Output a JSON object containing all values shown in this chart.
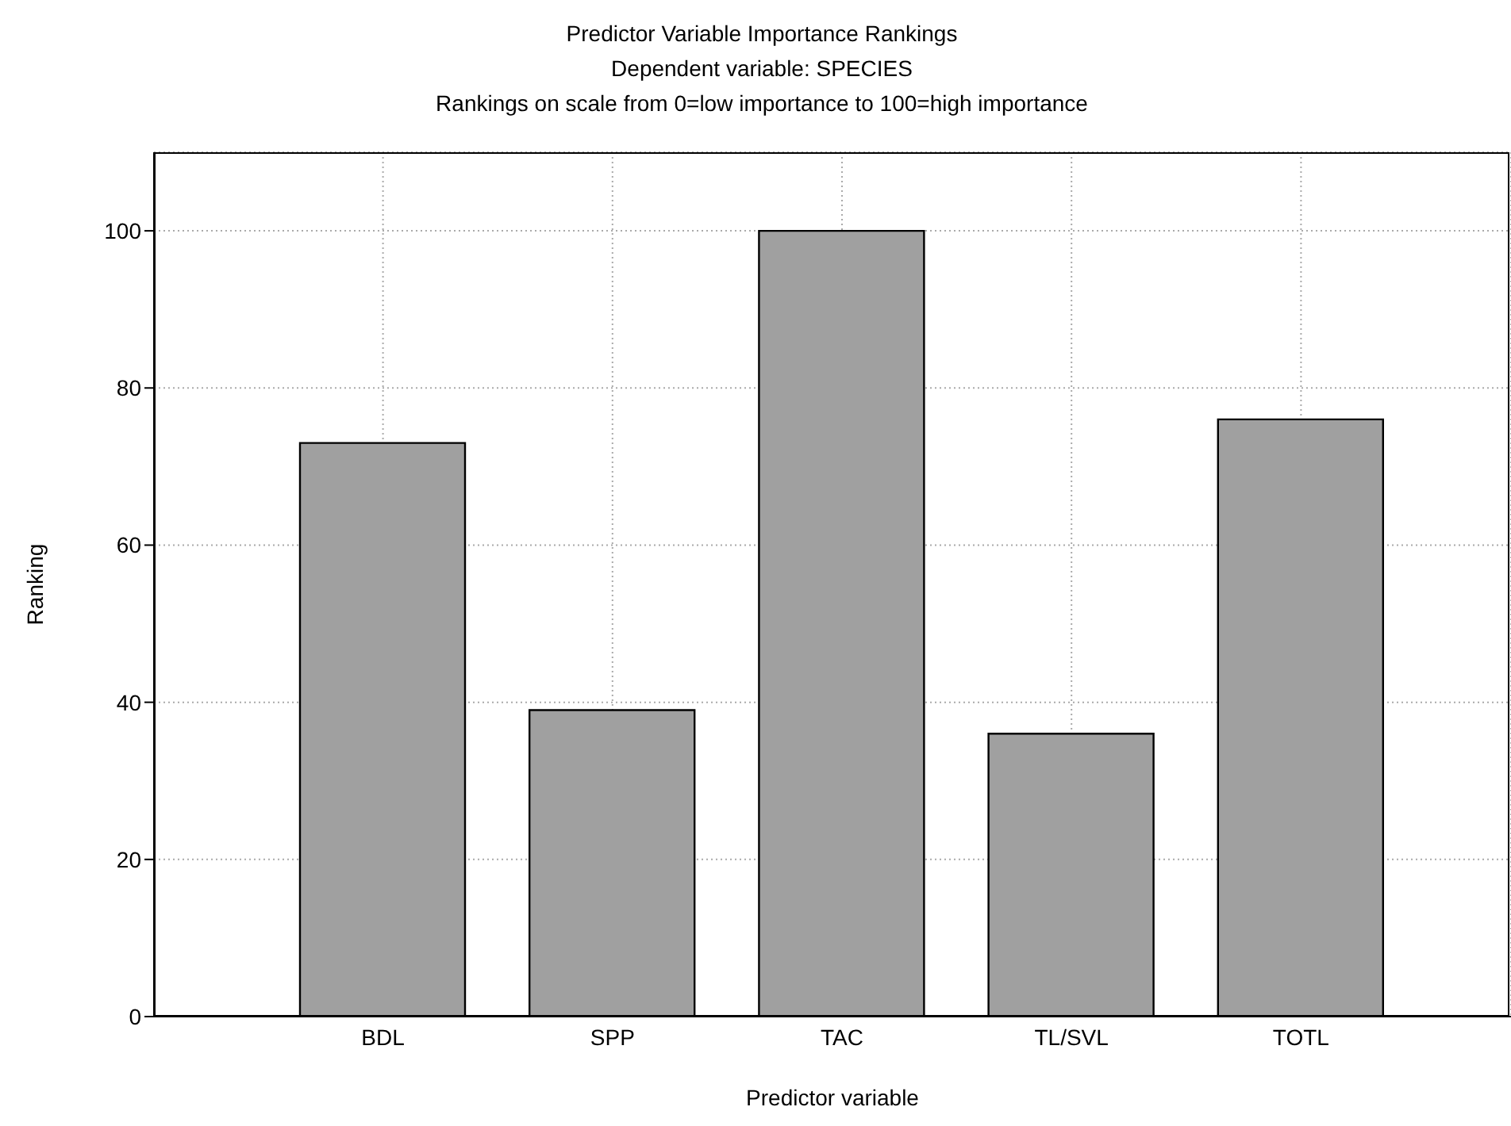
{
  "chart_data": {
    "type": "bar",
    "title": "Predictor Variable Importance Rankings",
    "subtitle": "Dependent variable: SPECIES",
    "annotations": [
      "Rankings on scale from 0=low importance to 100=high importance"
    ],
    "xlabel": "Predictor variable",
    "ylabel": "Ranking",
    "categories": [
      "BDL",
      "SPP",
      "TAC",
      "TL/SVL",
      "TOTL"
    ],
    "values": [
      73,
      39,
      100,
      36,
      76
    ],
    "color": "#a0a0a0",
    "ylim": [
      0,
      110
    ],
    "yticks": [
      0,
      20,
      40,
      60,
      80,
      100
    ],
    "grid": true
  }
}
